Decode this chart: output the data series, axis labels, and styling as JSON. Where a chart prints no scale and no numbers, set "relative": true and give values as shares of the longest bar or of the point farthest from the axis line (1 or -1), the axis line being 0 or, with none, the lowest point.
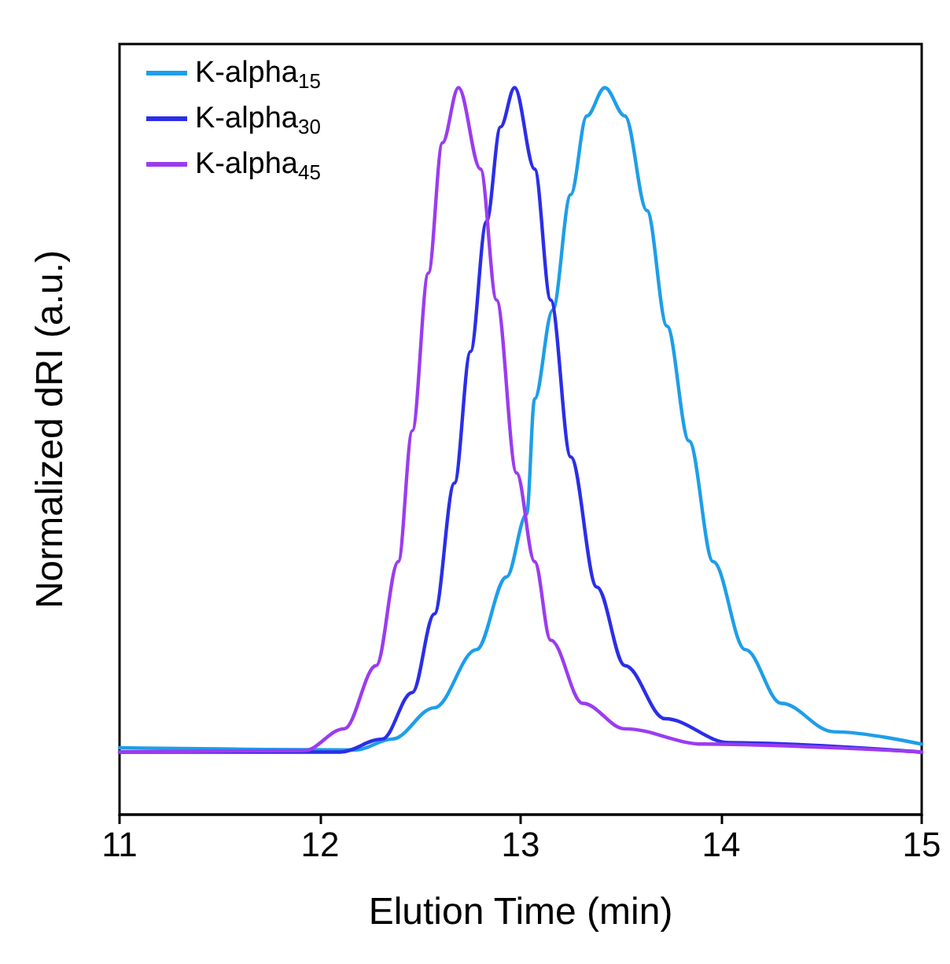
{
  "chart_data": {
    "type": "line",
    "xlabel": "Elution Time (min)",
    "ylabel": "Normalized dRI (a.u.)",
    "relative": true,
    "xlim": [
      11,
      15
    ],
    "xticks": [
      11,
      12,
      13,
      14,
      15
    ],
    "legend": "top left",
    "grid": false,
    "marker": "none",
    "line_style": "solid",
    "series": [
      {
        "name": "K-alpha$_{15}$",
        "color": "#1e9ee8",
        "x": [
          11,
          12.18,
          12.36,
          12.57,
          12.78,
          12.93,
          13.03,
          13.07,
          13.16,
          13.25,
          13.33,
          13.42,
          13.52,
          13.63,
          13.73,
          13.84,
          13.96,
          14.12,
          14.3,
          14.56,
          15
        ],
        "values": [
          0.092,
          0.089,
          0.104,
          0.147,
          0.227,
          0.327,
          0.413,
          0.572,
          0.694,
          0.853,
          0.961,
          1,
          0.961,
          0.831,
          0.672,
          0.514,
          0.348,
          0.227,
          0.153,
          0.114,
          0.097
        ]
      },
      {
        "name": "K-alpha$_{30}$",
        "color": "#2b2ee8",
        "x": [
          11,
          12.1,
          12.31,
          12.46,
          12.57,
          12.67,
          12.75,
          12.83,
          12.9,
          12.97,
          13.07,
          13.15,
          13.25,
          13.38,
          13.52,
          13.72,
          14.04,
          15
        ],
        "values": [
          0.086,
          0.086,
          0.104,
          0.168,
          0.276,
          0.456,
          0.637,
          0.816,
          0.946,
          1,
          0.888,
          0.708,
          0.492,
          0.313,
          0.205,
          0.132,
          0.099,
          0.086
        ]
      },
      {
        "name": "K-alpha$_{45}$",
        "color": "#9b3cf0",
        "x": [
          11,
          11.92,
          12.12,
          12.28,
          12.39,
          12.46,
          12.54,
          12.61,
          12.69,
          12.8,
          12.88,
          12.98,
          13.07,
          13.15,
          13.31,
          13.52,
          13.91,
          15
        ],
        "values": [
          0.086,
          0.088,
          0.118,
          0.205,
          0.348,
          0.528,
          0.745,
          0.924,
          1,
          0.888,
          0.708,
          0.47,
          0.348,
          0.24,
          0.153,
          0.118,
          0.097,
          0.086
        ]
      }
    ]
  }
}
